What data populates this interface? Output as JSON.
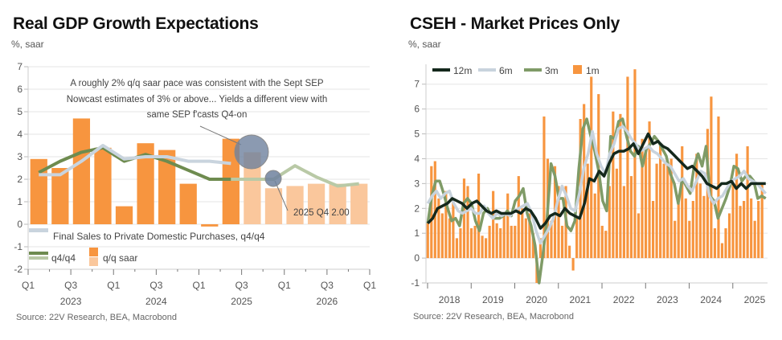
{
  "colors": {
    "bar_actual": "#f7953f",
    "bar_forecast": "#fac79c",
    "q4q4_actual": "#6e8b4f",
    "q4q4_forecast": "#b9c9a6",
    "final_sales": "#c9d4de",
    "line_12m": "#14281c",
    "line_6m": "#c8d3dd",
    "line_3m": "#7f9b67",
    "bar_1m": "#f7953f",
    "grid": "#e5e5e5",
    "bubble": "#6e819e"
  },
  "chart_data": [
    {
      "type": "bar",
      "title": "Real GDP Growth Expectations",
      "unit_label": "%, saar",
      "source": "Source: 22V Research, BEA, Macrobond",
      "ylim": [
        -2,
        7
      ],
      "yticks": [
        "7",
        "6",
        "5",
        "4",
        "3",
        "2",
        "1",
        "0",
        "-1",
        "-2"
      ],
      "grid": true,
      "x_quarter_labels": [
        "Q1",
        "Q3",
        "Q1",
        "Q3",
        "Q1",
        "Q3",
        "Q1",
        "Q3",
        "Q1"
      ],
      "x_year_labels": [
        "2023",
        "2024",
        "2025",
        "2026"
      ],
      "categories": [
        "2023Q1",
        "2023Q2",
        "2023Q3",
        "2023Q4",
        "2024Q1",
        "2024Q2",
        "2024Q3",
        "2024Q4",
        "2025Q1",
        "2025Q2",
        "2025Q3",
        "2025Q4",
        "2026Q1",
        "2026Q2",
        "2026Q3",
        "2026Q4"
      ],
      "series": [
        {
          "name": "q/q saar",
          "kind": "bar",
          "values": [
            2.9,
            2.5,
            4.7,
            3.4,
            0.8,
            3.6,
            3.3,
            1.8,
            -0.1,
            3.8,
            3.2,
            1.6,
            1.7,
            1.8,
            1.8,
            1.8
          ],
          "forecast_from_index": 10
        },
        {
          "name": "q4/q4",
          "kind": "line",
          "values": [
            2.3,
            2.8,
            3.2,
            3.4,
            2.8,
            3.1,
            2.8,
            2.4,
            2.0,
            2.0,
            2.0,
            2.0,
            2.6,
            2.1,
            1.7,
            1.8
          ],
          "forecast_from_index": 9
        },
        {
          "name": "Final Sales to Private Domestic Purchases, q4/q4",
          "kind": "line",
          "values": [
            2.2,
            2.2,
            2.8,
            3.5,
            2.9,
            3.0,
            3.0,
            2.8,
            2.8,
            2.7,
            null,
            null,
            null,
            null,
            null,
            null
          ]
        }
      ],
      "legend": {
        "final_sales": "Final Sales to Private Domestic Purchases, q4/q4",
        "q4q4": "q4/q4",
        "qq": "q/q saar",
        "placement": "bottom-left"
      },
      "annotations": {
        "note_line1": "A roughly 2% q/q saar pace was consistent with the Sept SEP",
        "note_line2": "Nowcast estimates of 3% or above... Yields a different view with",
        "note_line3": "same SEP f'casts Q4-on",
        "point_label": "2025 Q4 2.00"
      }
    },
    {
      "type": "bar",
      "title": "CSEH - Market Prices Only",
      "unit_label": "%, saar",
      "source": "Source: 22V Research, BEA, Macrobond",
      "ylim": [
        -1,
        7.8
      ],
      "yticks": [
        "7",
        "6",
        "5",
        "4",
        "3",
        "2",
        "1",
        "0",
        "-1"
      ],
      "grid": true,
      "x_year_labels": [
        "2018",
        "2019",
        "2020",
        "2021",
        "2022",
        "2023",
        "2024",
        "2025"
      ],
      "legend": {
        "line_12m": "12m",
        "line_6m": "6m",
        "line_3m": "3m",
        "bar_1m": "1m",
        "placement": "top-left"
      },
      "x_start": "2018-01",
      "series": [
        {
          "name": "1m",
          "kind": "bar",
          "values": [
            1.4,
            3.7,
            3.9,
            2.4,
            1.8,
            2.7,
            1.6,
            2.3,
            0.8,
            1.2,
            3.2,
            2.9,
            1.2,
            1.3,
            3.4,
            0.9,
            0.8,
            1.3,
            2.7,
            1.4,
            1.2,
            1.7,
            2.6,
            1.3,
            1.3,
            3.3,
            2.0,
            1.6,
            1.8,
            1.0,
            -1.0,
            0.8,
            5.7,
            4.0,
            1.5,
            3.7,
            2.9,
            1.3,
            2.9,
            0.5,
            -0.5,
            1.6,
            5.6,
            6.2,
            3.8,
            7.3,
            2.6,
            6.6,
            1.3,
            1.1,
            2.9,
            5.9,
            3.6,
            5.8,
            2.9,
            7.3,
            3.3,
            7.6,
            1.8,
            4.8,
            4.4,
            5.5,
            2.3,
            3.8,
            4.6,
            3.8,
            3.8,
            4.0,
            1.5,
            2.2,
            4.5,
            2.4,
            1.5,
            2.3,
            4.2,
            3.0,
            2.5,
            5.2,
            6.5,
            1.2,
            5.7,
            0.6,
            1.2,
            1.8,
            3.0,
            4.2,
            2.1,
            2.3,
            4.5,
            2.4,
            1.5,
            2.3,
            3.0
          ]
        },
        {
          "name": "3m",
          "kind": "line",
          "values": [
            1.4,
            2.5,
            3.1,
            3.1,
            2.6,
            2.0,
            1.5,
            1.6,
            1.3,
            2.2,
            2.4,
            2.2,
            1.5,
            1.1,
            1.8,
            2.0,
            1.7,
            1.6,
            1.6,
            1.7,
            1.9,
            1.7,
            2.3,
            2.5,
            2.8,
            1.8,
            1.3,
            0.5,
            -1.0,
            0.2,
            1.6,
            3.8,
            3.3,
            2.4,
            2.4,
            1.3,
            1.1,
            1.5,
            3.6,
            5.2,
            5.6,
            4.9,
            4.3,
            3.5,
            2.3,
            1.9,
            4.9,
            4.8,
            5.5,
            5.6,
            4.9,
            4.3,
            4.1,
            4.5,
            3.7,
            4.4,
            4.6,
            4.9,
            4.7,
            4.4,
            4.1,
            3.4,
            3.0,
            2.2,
            3.2,
            2.9,
            2.6,
            3.7,
            4.2,
            3.7,
            4.5,
            2.5,
            2.3,
            1.6,
            2.0,
            2.4,
            2.9,
            3.7,
            3.6,
            3.1,
            3.3,
            3.3,
            3.1,
            2.4,
            2.5,
            2.4
          ]
        },
        {
          "name": "6m",
          "kind": "line",
          "values": [
            2.2,
            2.5,
            2.7,
            2.4,
            2.6,
            2.7,
            2.2,
            1.9,
            1.8,
            1.9,
            2.0,
            1.8,
            1.8,
            2.1,
            1.8,
            1.6,
            1.8,
            1.7,
            1.8,
            1.7,
            1.9,
            2.0,
            2.1,
            2.2,
            1.8,
            1.1,
            0.6,
            0.9,
            1.2,
            1.6,
            2.3,
            2.9,
            2.5,
            2.0,
            1.9,
            2.6,
            3.6,
            4.2,
            5.1,
            4.2,
            3.7,
            3.4,
            4.2,
            4.6,
            5.2,
            5.3,
            5.1,
            4.8,
            4.6,
            4.3,
            4.4,
            4.5,
            4.3,
            4.2,
            4.0,
            3.8,
            3.7,
            3.4,
            3.1,
            3.2,
            2.9,
            2.7,
            3.1,
            3.5,
            3.4,
            2.5,
            2.2,
            2.4,
            2.5,
            2.8,
            3.1,
            3.2,
            3.3,
            3.5,
            3.2,
            3.1,
            3.0,
            2.8,
            2.6
          ]
        },
        {
          "name": "12m",
          "kind": "line",
          "values": [
            1.4,
            1.6,
            2.0,
            2.1,
            2.2,
            2.4,
            2.3,
            2.2,
            2.0,
            2.2,
            2.3,
            2.1,
            1.9,
            1.8,
            1.9,
            1.8,
            1.8,
            1.8,
            1.9,
            1.8,
            2.0,
            1.9,
            1.6,
            1.2,
            1.4,
            1.7,
            1.8,
            1.7,
            2.0,
            1.8,
            1.7,
            1.6,
            2.2,
            3.2,
            3.1,
            3.5,
            3.3,
            3.8,
            4.2,
            4.3,
            4.3,
            4.4,
            4.6,
            4.2,
            4.6,
            5.0,
            4.6,
            4.7,
            4.5,
            4.4,
            4.2,
            4.0,
            3.8,
            3.6,
            3.7,
            3.5,
            3.3,
            3.0,
            2.9,
            2.8,
            3.0,
            3.0,
            3.1,
            2.8,
            3.0,
            2.8,
            3.0,
            3.0,
            3.0,
            3.0
          ]
        }
      ]
    }
  ]
}
